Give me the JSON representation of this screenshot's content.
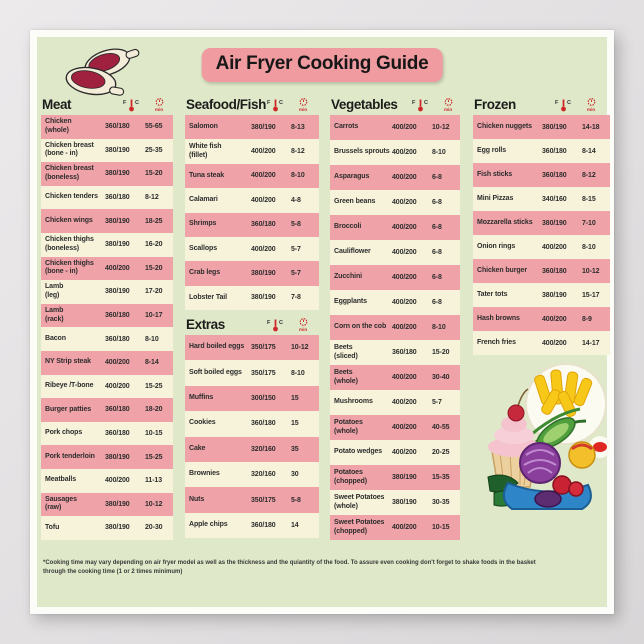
{
  "title": "Air Fryer Cooking Guide",
  "footnote": "*Cooking time may vary depending on air fryer model as well as the thickness and the quiantity of the food. To assure even cooking don't forget to shake foods in the basket through the cooking time (1 or 2 times minimum)",
  "header_icons": {
    "f_label": "F",
    "c_label": "C",
    "min_label": "min"
  },
  "colors": {
    "poster_background": "#dfe8c8",
    "row_pink": "#efa2a7",
    "row_cream": "#f6f3da",
    "badge_pink": "#ef9ba0",
    "icon_red": "#cc2a2a",
    "text_dark": "#2d2d2d"
  },
  "sections": {
    "meat": {
      "title": "Meat",
      "rows": [
        {
          "name": "Chicken\n(whole)",
          "temp": "360/180",
          "time": "55-65"
        },
        {
          "name": "Chicken breast\n(bone - in)",
          "temp": "380/190",
          "time": "25-35"
        },
        {
          "name": "Chicken breast\n(boneless)",
          "temp": "380/190",
          "time": "15-20"
        },
        {
          "name": "Chicken tenders",
          "temp": "360/180",
          "time": "8-12"
        },
        {
          "name": "Chicken wings",
          "temp": "380/190",
          "time": "18-25"
        },
        {
          "name": "Chicken thighs\n(boneless)",
          "temp": "380/190",
          "time": "16-20"
        },
        {
          "name": "Chicken thighs\n(bone - in)",
          "temp": "400/200",
          "time": "15-20"
        },
        {
          "name": "Lamb\n(leg)",
          "temp": "380/190",
          "time": "17-20"
        },
        {
          "name": "Lamb\n(rack)",
          "temp": "360/180",
          "time": "10-17"
        },
        {
          "name": "Bacon",
          "temp": "360/180",
          "time": "8-10"
        },
        {
          "name": "NY Strip steak",
          "temp": "400/200",
          "time": "8-14"
        },
        {
          "name": "Ribeye /T-bone",
          "temp": "400/200",
          "time": "15-25"
        },
        {
          "name": "Burger patties",
          "temp": "360/180",
          "time": "18-20"
        },
        {
          "name": "Pork chops",
          "temp": "360/180",
          "time": "10-15"
        },
        {
          "name": "Pork tenderloin",
          "temp": "380/190",
          "time": "15-25"
        },
        {
          "name": "Meatballs",
          "temp": "400/200",
          "time": "11-13"
        },
        {
          "name": "Sausages\n(raw)",
          "temp": "380/190",
          "time": "10-12"
        },
        {
          "name": "Tofu",
          "temp": "380/190",
          "time": "20-30"
        }
      ]
    },
    "seafood": {
      "title": "Seafood/Fish",
      "rows": [
        {
          "name": "Salomon",
          "temp": "380/190",
          "time": "8-13"
        },
        {
          "name": "White fish\n(fillet)",
          "temp": "400/200",
          "time": "8-12"
        },
        {
          "name": "Tuna steak",
          "temp": "400/200",
          "time": "8-10"
        },
        {
          "name": "Calamari",
          "temp": "400/200",
          "time": "4-8"
        },
        {
          "name": "Shrimps",
          "temp": "360/180",
          "time": "5-8"
        },
        {
          "name": "Scallops",
          "temp": "400/200",
          "time": "5-7"
        },
        {
          "name": "Crab legs",
          "temp": "380/190",
          "time": "5-7"
        },
        {
          "name": "Lobster Tail",
          "temp": "380/190",
          "time": "7-8"
        }
      ]
    },
    "extras": {
      "title": "Extras",
      "rows": [
        {
          "name": "Hard boiled eggs",
          "temp": "350/175",
          "time": "10-12"
        },
        {
          "name": "Soft boiled eggs",
          "temp": "350/175",
          "time": "8-10"
        },
        {
          "name": "Muffins",
          "temp": "300/150",
          "time": "15"
        },
        {
          "name": "Cookies",
          "temp": "360/180",
          "time": "15"
        },
        {
          "name": "Cake",
          "temp": "320/160",
          "time": "35"
        },
        {
          "name": "Brownies",
          "temp": "320/160",
          "time": "30"
        },
        {
          "name": "Nuts",
          "temp": "350/175",
          "time": "5-8"
        },
        {
          "name": "Apple chips",
          "temp": "360/180",
          "time": "14"
        }
      ]
    },
    "vegetables": {
      "title": "Vegetables",
      "rows": [
        {
          "name": "Carrots",
          "temp": "400/200",
          "time": "10-12"
        },
        {
          "name": "Brussels sprouts",
          "temp": "400/200",
          "time": "8-10"
        },
        {
          "name": "Asparagus",
          "temp": "400/200",
          "time": "6-8"
        },
        {
          "name": "Green beans",
          "temp": "400/200",
          "time": "6-8"
        },
        {
          "name": "Broccoli",
          "temp": "400/200",
          "time": "6-8"
        },
        {
          "name": "Cauliflower",
          "temp": "400/200",
          "time": "6-8"
        },
        {
          "name": "Zucchini",
          "temp": "400/200",
          "time": "6-8"
        },
        {
          "name": "Eggplants",
          "temp": "400/200",
          "time": "6-8"
        },
        {
          "name": "Corn on the cob",
          "temp": "400/200",
          "time": "8-10"
        },
        {
          "name": "Beets\n(sliced)",
          "temp": "360/180",
          "time": "15-20"
        },
        {
          "name": "Beets\n(whole)",
          "temp": "400/200",
          "time": "30-40"
        },
        {
          "name": "Mushrooms",
          "temp": "400/200",
          "time": "5-7"
        },
        {
          "name": "Potatoes\n(whole)",
          "temp": "400/200",
          "time": "40-55"
        },
        {
          "name": "Potato wedges",
          "temp": "400/200",
          "time": "20-25"
        },
        {
          "name": "Potatoes\n(chopped)",
          "temp": "380/190",
          "time": "15-35"
        },
        {
          "name": "Sweet Potatoes\n(whole)",
          "temp": "380/190",
          "time": "30-35"
        },
        {
          "name": "Sweet Potatoes\n(chopped)",
          "temp": "400/200",
          "time": "10-15"
        }
      ]
    },
    "frozen": {
      "title": "Frozen",
      "rows": [
        {
          "name": "Chicken nuggets",
          "temp": "380/190",
          "time": "14-18"
        },
        {
          "name": "Egg rolls",
          "temp": "360/180",
          "time": "8-14"
        },
        {
          "name": "Fish sticks",
          "temp": "360/180",
          "time": "8-12"
        },
        {
          "name": "Mini Pizzas",
          "temp": "340/160",
          "time": "8-15"
        },
        {
          "name": "Mozzarella sticks",
          "temp": "380/190",
          "time": "7-10"
        },
        {
          "name": "Onion rings",
          "temp": "400/200",
          "time": "8-10"
        },
        {
          "name": "Chicken burger",
          "temp": "360/180",
          "time": "10-12"
        },
        {
          "name": "Tater tots",
          "temp": "380/190",
          "time": "15-17"
        },
        {
          "name": "Hash browns",
          "temp": "400/200",
          "time": "8-9"
        },
        {
          "name": "French fries",
          "temp": "400/200",
          "time": "14-17"
        }
      ]
    }
  }
}
